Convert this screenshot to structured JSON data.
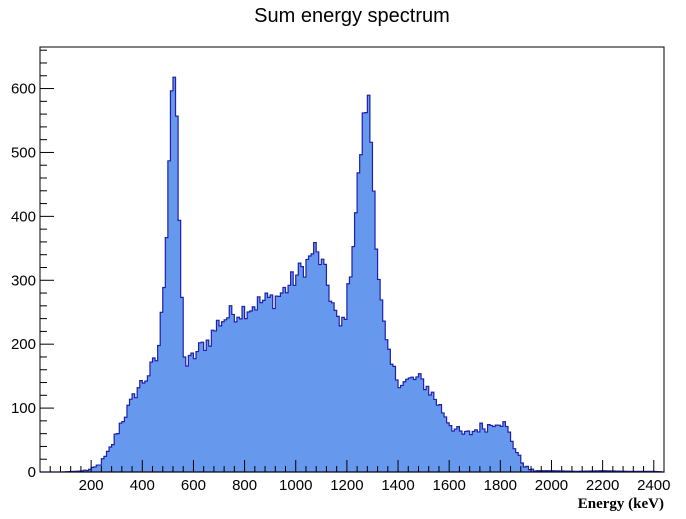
{
  "chart_data": {
    "type": "histogram",
    "title": "Sum energy spectrum",
    "xlabel": "Energy (keV)",
    "ylabel": "",
    "xlim": [
      0,
      2440
    ],
    "ylim": [
      0,
      665
    ],
    "grid": false,
    "legend": "none",
    "x_ticks": [
      200,
      400,
      600,
      800,
      1000,
      1200,
      1400,
      1600,
      1800,
      2000,
      2200,
      2400
    ],
    "x_tick_labels": [
      "200",
      "400",
      "600",
      "800",
      "1000",
      "1200",
      "1400",
      "1600",
      "1800",
      "2000",
      "2200",
      "2400"
    ],
    "y_ticks": [
      0,
      100,
      200,
      300,
      400,
      500,
      600
    ],
    "y_tick_labels": [
      "0",
      "100",
      "200",
      "300",
      "400",
      "500",
      "600"
    ],
    "bin_width": 10,
    "fill_color": "#6699ee",
    "line_color": "#1f1fa8",
    "anchors": [
      [
        0,
        0
      ],
      [
        80,
        0
      ],
      [
        140,
        1
      ],
      [
        170,
        2
      ],
      [
        200,
        4
      ],
      [
        220,
        8
      ],
      [
        240,
        15
      ],
      [
        260,
        25
      ],
      [
        280,
        40
      ],
      [
        300,
        60
      ],
      [
        320,
        80
      ],
      [
        340,
        95
      ],
      [
        360,
        110
      ],
      [
        380,
        130
      ],
      [
        400,
        140
      ],
      [
        420,
        150
      ],
      [
        440,
        165
      ],
      [
        460,
        180
      ],
      [
        480,
        260
      ],
      [
        500,
        420
      ],
      [
        510,
        570
      ],
      [
        520,
        635
      ],
      [
        530,
        600
      ],
      [
        540,
        470
      ],
      [
        550,
        320
      ],
      [
        560,
        210
      ],
      [
        570,
        165
      ],
      [
        580,
        170
      ],
      [
        600,
        180
      ],
      [
        620,
        190
      ],
      [
        640,
        200
      ],
      [
        660,
        205
      ],
      [
        680,
        220
      ],
      [
        700,
        235
      ],
      [
        720,
        240
      ],
      [
        740,
        245
      ],
      [
        760,
        250
      ],
      [
        780,
        250
      ],
      [
        800,
        255
      ],
      [
        820,
        258
      ],
      [
        840,
        262
      ],
      [
        860,
        265
      ],
      [
        880,
        268
      ],
      [
        900,
        270
      ],
      [
        920,
        272
      ],
      [
        940,
        278
      ],
      [
        960,
        285
      ],
      [
        980,
        295
      ],
      [
        1000,
        305
      ],
      [
        1020,
        315
      ],
      [
        1040,
        325
      ],
      [
        1060,
        335
      ],
      [
        1070,
        355
      ],
      [
        1080,
        340
      ],
      [
        1100,
        330
      ],
      [
        1120,
        300
      ],
      [
        1140,
        270
      ],
      [
        1160,
        240
      ],
      [
        1170,
        225
      ],
      [
        1180,
        228
      ],
      [
        1200,
        260
      ],
      [
        1220,
        340
      ],
      [
        1240,
        430
      ],
      [
        1260,
        530
      ],
      [
        1280,
        590
      ],
      [
        1290,
        560
      ],
      [
        1300,
        480
      ],
      [
        1320,
        330
      ],
      [
        1340,
        240
      ],
      [
        1360,
        185
      ],
      [
        1380,
        160
      ],
      [
        1400,
        145
      ],
      [
        1420,
        140
      ],
      [
        1440,
        142
      ],
      [
        1460,
        145
      ],
      [
        1480,
        145
      ],
      [
        1500,
        140
      ],
      [
        1520,
        130
      ],
      [
        1540,
        118
      ],
      [
        1560,
        105
      ],
      [
        1580,
        92
      ],
      [
        1600,
        78
      ],
      [
        1620,
        68
      ],
      [
        1640,
        62
      ],
      [
        1660,
        58
      ],
      [
        1680,
        60
      ],
      [
        1700,
        65
      ],
      [
        1720,
        70
      ],
      [
        1740,
        70
      ],
      [
        1760,
        73
      ],
      [
        1780,
        80
      ],
      [
        1800,
        80
      ],
      [
        1820,
        72
      ],
      [
        1840,
        55
      ],
      [
        1860,
        35
      ],
      [
        1880,
        18
      ],
      [
        1900,
        8
      ],
      [
        1920,
        3
      ],
      [
        1940,
        2
      ],
      [
        2000,
        2
      ],
      [
        2100,
        1
      ],
      [
        2200,
        2
      ],
      [
        2300,
        1
      ],
      [
        2400,
        1
      ],
      [
        2440,
        0
      ]
    ]
  }
}
